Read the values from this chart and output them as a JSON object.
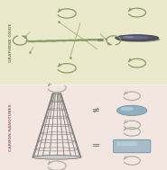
{
  "top_bg": "#eae9cc",
  "bottom_bg": "#f3e5e0",
  "top_label": "GRAPHENE OXIDE",
  "bottom_label": "CARBON NANOTUBES",
  "label_color_top": "#7a8a5a",
  "label_color_bottom": "#a07070",
  "eq_color": "#666666",
  "neq_color": "#666666",
  "arrow_color_top": "#8a9a60",
  "arrow_color_bottom": "#b0b0a0",
  "disk_color_top": "#555560",
  "disk_highlight": "#8888a0",
  "disk_shadow": "#333340",
  "ellipse_blue": "#90b0c0",
  "ellipse_blue_light": "#c0d8e8",
  "box_color": "#a8bcc8",
  "box_color_light": "#c8dce8",
  "graphene_color": "#8a9a60",
  "cnt_color": "#aaaaaa",
  "cnt_edge": "#888888"
}
